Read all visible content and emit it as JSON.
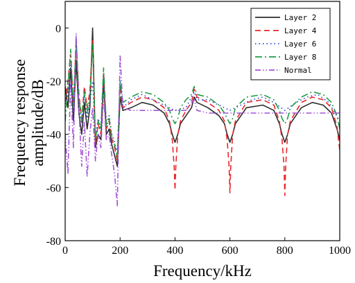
{
  "chart_data": {
    "type": "line",
    "xlabel": "Frequency/kHz",
    "ylabel_lines": [
      "Frequency response",
      "amplitude/dB"
    ],
    "xlim": [
      0,
      1000
    ],
    "ylim": [
      -80,
      10
    ],
    "x_ticks": [
      0,
      200,
      400,
      600,
      800,
      1000
    ],
    "y_ticks": [
      0,
      -20,
      -40,
      -60,
      -80
    ],
    "grid": false,
    "legend_position": "top-right",
    "series": [
      {
        "name": "Layer 2",
        "color": "#2b2b2b",
        "dash": "solid",
        "x": [
          0,
          10,
          20,
          30,
          40,
          50,
          60,
          70,
          80,
          90,
          100,
          110,
          120,
          130,
          140,
          150,
          160,
          170,
          180,
          190,
          200,
          210,
          240,
          280,
          320,
          360,
          380,
          390,
          400,
          410,
          420,
          440,
          460,
          470,
          480,
          520,
          560,
          580,
          590,
          600,
          610,
          620,
          660,
          720,
          760,
          780,
          790,
          800,
          810,
          820,
          860,
          900,
          940,
          970,
          990,
          1000
        ],
        "y": [
          -22,
          -30,
          -15,
          -35,
          -12,
          -32,
          -40,
          -28,
          -38,
          -30,
          0,
          -45,
          -40,
          -42,
          -20,
          -40,
          -38,
          -44,
          -48,
          -52,
          -26,
          -31,
          -30,
          -28,
          -29,
          -32,
          -36,
          -40,
          -43,
          -40,
          -36,
          -33,
          -30,
          -26,
          -28,
          -30,
          -33,
          -36,
          -40,
          -43,
          -40,
          -36,
          -30,
          -29,
          -31,
          -36,
          -40,
          -43,
          -40,
          -36,
          -30,
          -28,
          -29,
          -32,
          -38,
          -42
        ]
      },
      {
        "name": "Layer 4",
        "color": "#e8272b",
        "dash": "8,5",
        "x": [
          0,
          10,
          20,
          30,
          40,
          50,
          60,
          70,
          80,
          90,
          100,
          110,
          120,
          130,
          140,
          150,
          160,
          170,
          180,
          190,
          200,
          210,
          240,
          280,
          320,
          360,
          380,
          390,
          397,
          400,
          403,
          410,
          420,
          440,
          460,
          470,
          480,
          520,
          560,
          580,
          590,
          597,
          600,
          603,
          610,
          620,
          660,
          720,
          760,
          780,
          790,
          797,
          800,
          803,
          810,
          820,
          860,
          900,
          940,
          970,
          990,
          1000
        ],
        "y": [
          -28,
          -20,
          -10,
          -30,
          -5,
          -25,
          -34,
          -22,
          -30,
          -24,
          -4,
          -44,
          -36,
          -40,
          -17,
          -38,
          -35,
          -42,
          -45,
          -50,
          -22,
          -30,
          -28,
          -26,
          -27,
          -30,
          -35,
          -42,
          -52,
          -61,
          -52,
          -40,
          -35,
          -31,
          -28,
          -23,
          -26,
          -28,
          -31,
          -35,
          -42,
          -52,
          -62,
          -52,
          -40,
          -35,
          -28,
          -27,
          -29,
          -35,
          -42,
          -52,
          -63,
          -52,
          -40,
          -35,
          -28,
          -26,
          -27,
          -30,
          -37,
          -46
        ]
      },
      {
        "name": "Layer 6",
        "color": "#2a3fd0",
        "dash": "1.5,4",
        "x": [
          0,
          10,
          20,
          30,
          40,
          50,
          60,
          70,
          80,
          90,
          100,
          110,
          120,
          130,
          140,
          150,
          160,
          170,
          180,
          190,
          200,
          210,
          240,
          280,
          320,
          360,
          400,
          440,
          470,
          480,
          520,
          560,
          600,
          640,
          680,
          720,
          760,
          800,
          840,
          880,
          920,
          960,
          1000
        ],
        "y": [
          -30,
          -25,
          -12,
          -32,
          -6,
          -28,
          -36,
          -25,
          -34,
          -28,
          -20,
          -42,
          -34,
          -38,
          -18,
          -36,
          -33,
          -40,
          -43,
          -47,
          -20,
          -30,
          -27,
          -25,
          -27,
          -29,
          -31,
          -30,
          -24,
          -27,
          -27,
          -29,
          -31,
          -29,
          -27,
          -26,
          -28,
          -31,
          -28,
          -26,
          -25,
          -28,
          -35
        ]
      },
      {
        "name": "Layer 8",
        "color": "#1f9d45",
        "dash": "10,4,2,4",
        "x": [
          0,
          10,
          20,
          30,
          40,
          50,
          60,
          70,
          80,
          90,
          100,
          110,
          120,
          130,
          140,
          150,
          160,
          170,
          180,
          190,
          200,
          210,
          240,
          280,
          320,
          360,
          380,
          390,
          400,
          410,
          420,
          440,
          460,
          470,
          480,
          520,
          560,
          580,
          590,
          600,
          610,
          620,
          660,
          720,
          760,
          780,
          790,
          800,
          810,
          820,
          860,
          900,
          940,
          970,
          990,
          1000
        ],
        "y": [
          -35,
          -22,
          -8,
          -30,
          -4,
          -26,
          -35,
          -24,
          -32,
          -26,
          -6,
          -42,
          -35,
          -38,
          -15,
          -37,
          -34,
          -41,
          -44,
          -49,
          -20,
          -28,
          -26,
          -24,
          -25,
          -28,
          -31,
          -34,
          -36,
          -34,
          -30,
          -27,
          -25,
          -22,
          -25,
          -26,
          -29,
          -32,
          -34,
          -36,
          -34,
          -30,
          -26,
          -25,
          -27,
          -31,
          -34,
          -36,
          -34,
          -30,
          -26,
          -24,
          -25,
          -28,
          -33,
          -38
        ]
      },
      {
        "name": "Normal",
        "color": "#a353d8",
        "dash": "8,3,1.5,3,1.5,3",
        "x": [
          0,
          10,
          20,
          30,
          40,
          50,
          60,
          70,
          80,
          90,
          100,
          110,
          120,
          130,
          140,
          150,
          160,
          170,
          180,
          190,
          200,
          210,
          240,
          280,
          320,
          360,
          400,
          440,
          470,
          480,
          520,
          600,
          700,
          800,
          900,
          1000
        ],
        "y": [
          -40,
          -55,
          -20,
          -45,
          -2,
          -30,
          -52,
          -35,
          -56,
          -40,
          -30,
          -50,
          -40,
          -45,
          -25,
          -42,
          -40,
          -48,
          -55,
          -67,
          -10,
          -30,
          -31,
          -31,
          -31,
          -31,
          -31,
          -31,
          -27,
          -31,
          -32,
          -32,
          -32,
          -32,
          -32,
          -32
        ]
      }
    ]
  }
}
